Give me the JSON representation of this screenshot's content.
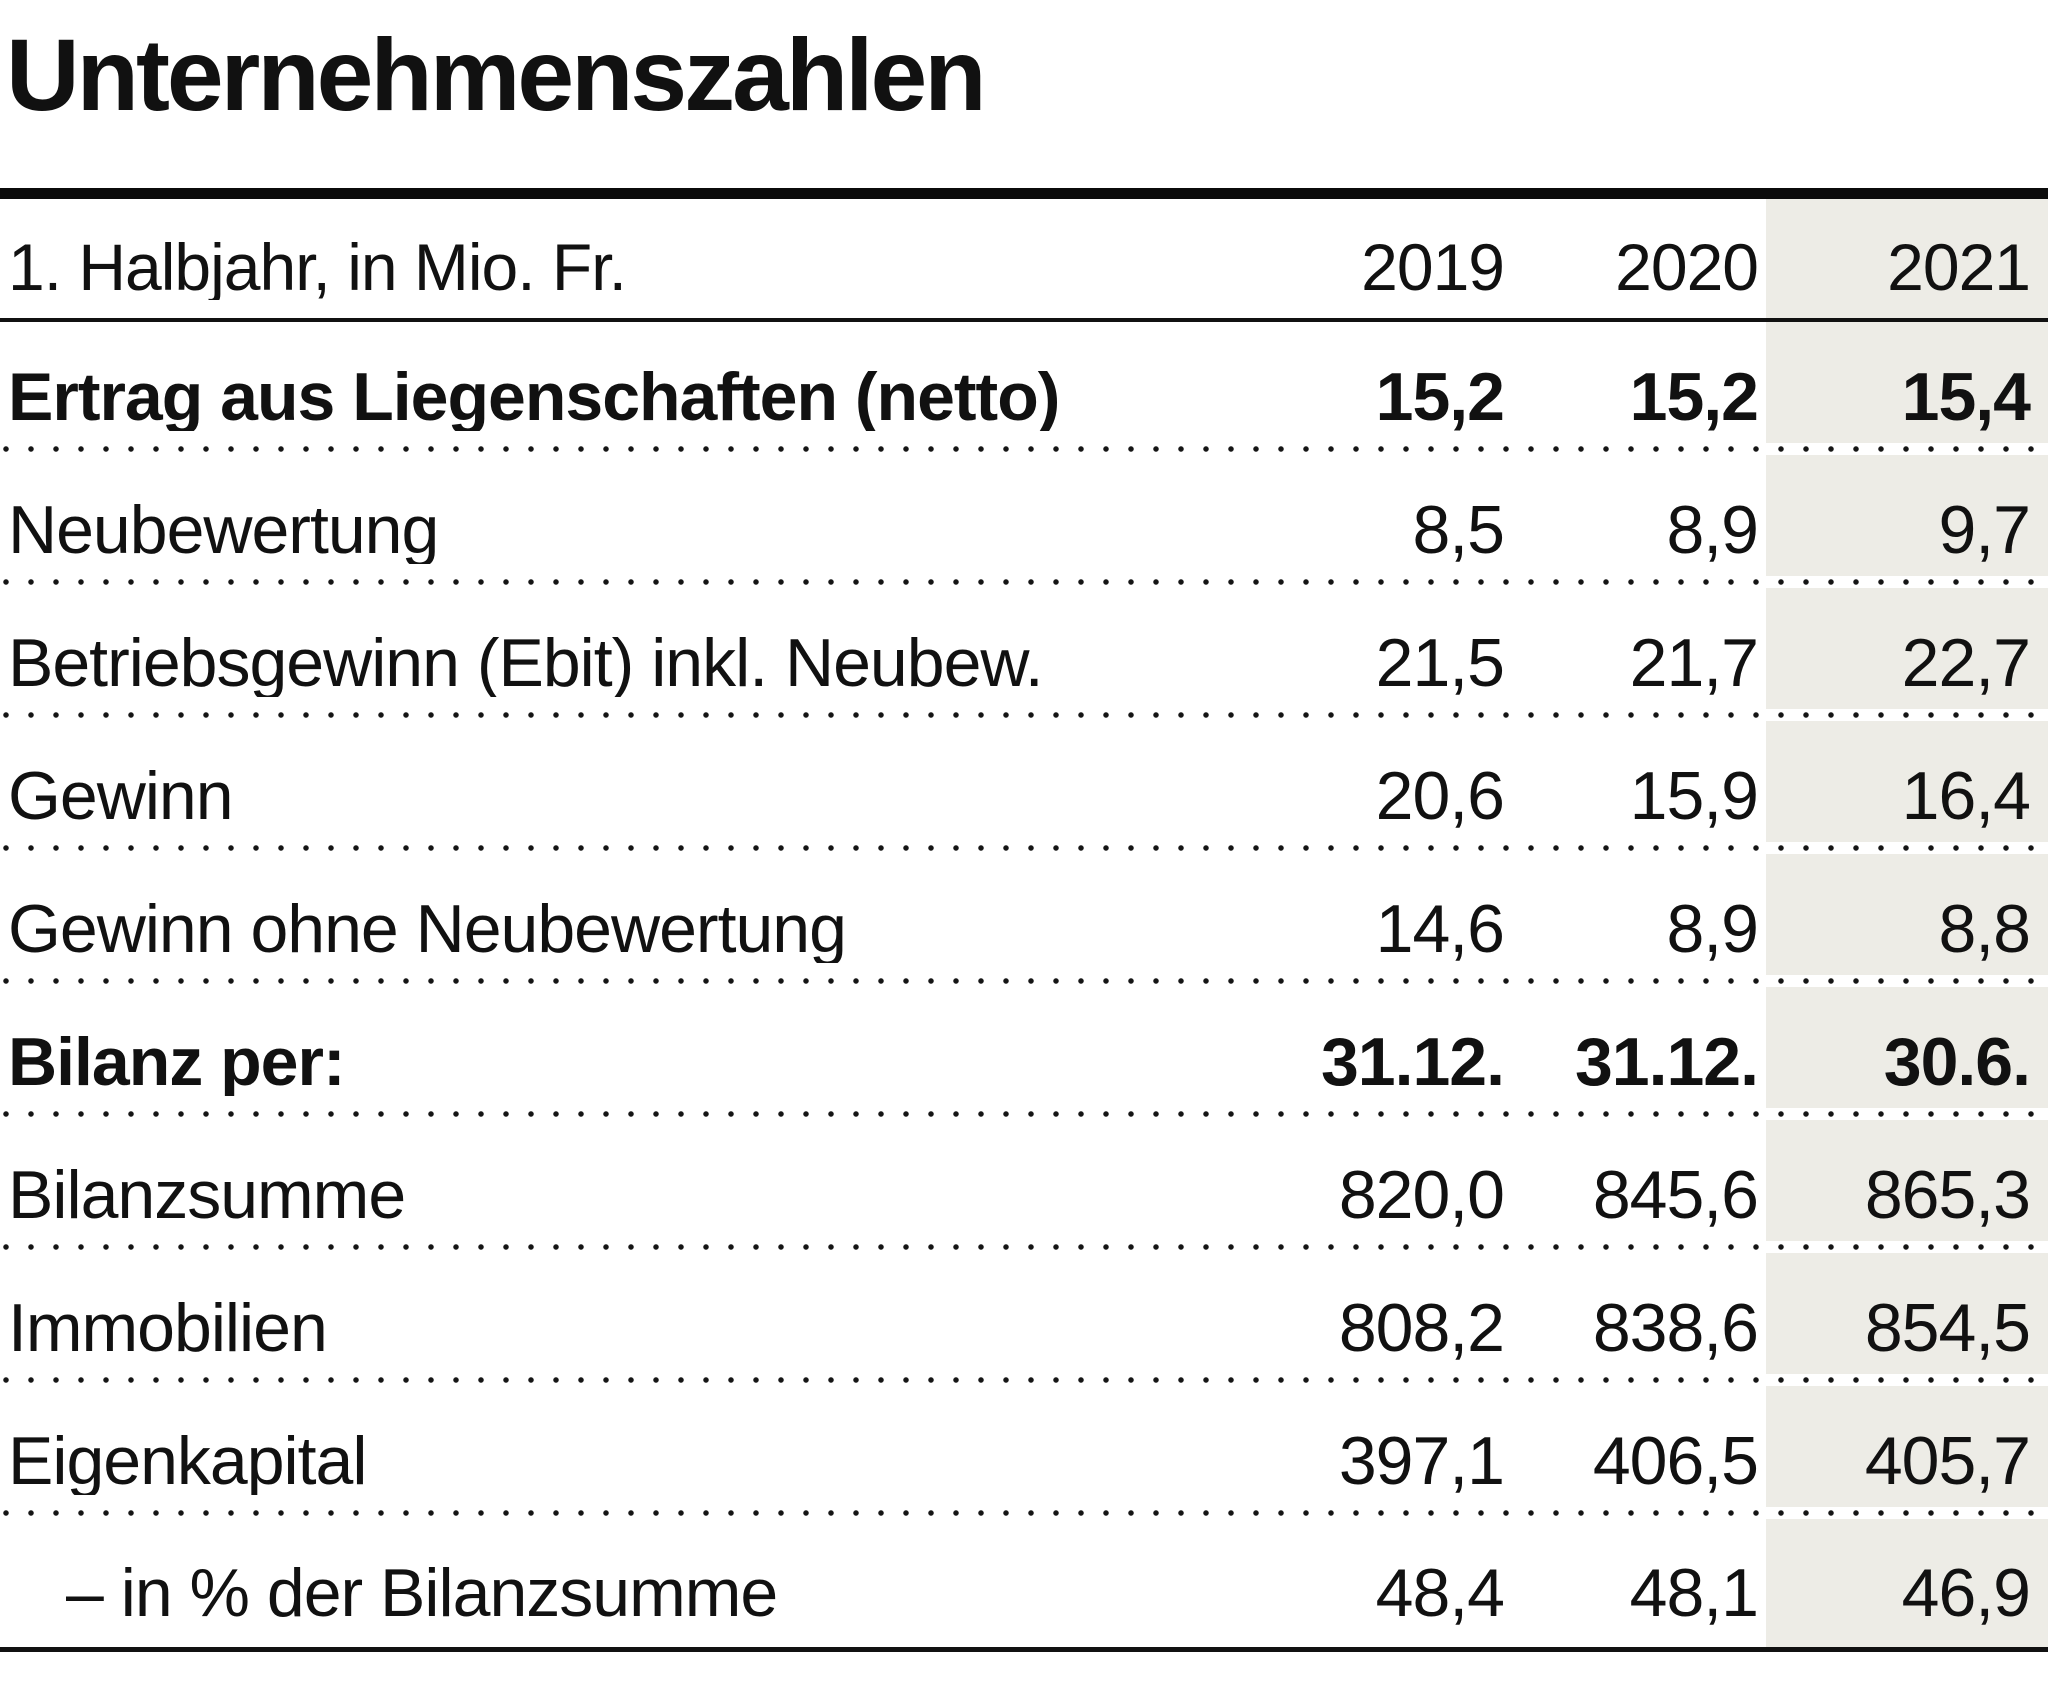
{
  "title": "Unternehmenszahlen",
  "table": {
    "unit_label": "1. Halbjahr, in Mio. Fr.",
    "columns": [
      "2019",
      "2020",
      "2021"
    ],
    "highlight_column": "2021",
    "highlight_color": "#edece6",
    "rule_color": "#111111",
    "rows": [
      {
        "label": "Ertrag aus Liegenschaften (netto)",
        "values": [
          "15,2",
          "15,2",
          "15,4"
        ],
        "bold": true
      },
      {
        "label": "Neubewertung",
        "values": [
          "8,5",
          "8,9",
          "9,7"
        ]
      },
      {
        "label": "Betriebsgewinn (Ebit) inkl. Neubew.",
        "values": [
          "21,5",
          "21,7",
          "22,7"
        ]
      },
      {
        "label": "Gewinn",
        "values": [
          "20,6",
          "15,9",
          "16,4"
        ]
      },
      {
        "label": "Gewinn ohne Neubewertung",
        "values": [
          "14,6",
          "8,9",
          "8,8"
        ]
      },
      {
        "label": "Bilanz per:",
        "values": [
          "31.12.",
          "31.12.",
          "30.6."
        ],
        "bold": true
      },
      {
        "label": "Bilanzsumme",
        "values": [
          "820,0",
          "845,6",
          "865,3"
        ]
      },
      {
        "label": "Immobilien",
        "values": [
          "808,2",
          "838,6",
          "854,5"
        ]
      },
      {
        "label": "Eigenkapital",
        "values": [
          "397,1",
          "406,5",
          "405,7"
        ]
      },
      {
        "label": "– in % der Bilanzsumme",
        "values": [
          "48,4",
          "48,1",
          "46,9"
        ],
        "indent": true
      }
    ]
  },
  "chart_data": {
    "type": "table",
    "title": "Unternehmenszahlen",
    "subtitle": "1. Halbjahr, in Mio. Fr.",
    "columns": [
      "2019",
      "2020",
      "2021"
    ],
    "highlighted_column": "2021",
    "rows": [
      {
        "label": "Ertrag aus Liegenschaften (netto)",
        "values": [
          15.2,
          15.2,
          15.4
        ],
        "emphasis": true
      },
      {
        "label": "Neubewertung",
        "values": [
          8.5,
          8.9,
          9.7
        ]
      },
      {
        "label": "Betriebsgewinn (Ebit) inkl. Neubew.",
        "values": [
          21.5,
          21.7,
          22.7
        ]
      },
      {
        "label": "Gewinn",
        "values": [
          20.6,
          15.9,
          16.4
        ]
      },
      {
        "label": "Gewinn ohne Neubewertung",
        "values": [
          14.6,
          8.9,
          8.8
        ]
      },
      {
        "label": "Bilanz per:",
        "values": [
          "31.12.",
          "31.12.",
          "30.6."
        ],
        "emphasis": true
      },
      {
        "label": "Bilanzsumme",
        "values": [
          820.0,
          845.6,
          865.3
        ]
      },
      {
        "label": "Immobilien",
        "values": [
          808.2,
          838.6,
          854.5
        ]
      },
      {
        "label": "Eigenkapital",
        "values": [
          397.1,
          406.5,
          405.7
        ]
      },
      {
        "label": "– in % der Bilanzsumme",
        "values": [
          48.4,
          48.1,
          46.9
        ],
        "indent": true
      }
    ]
  }
}
